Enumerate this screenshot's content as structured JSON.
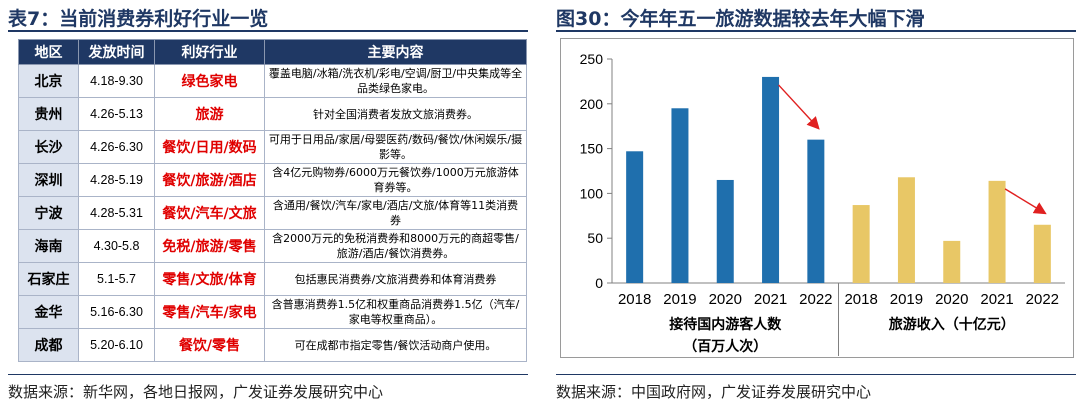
{
  "left_panel": {
    "title": "表7：当前消费券利好行业一览",
    "headers": [
      "地区",
      "发放时间",
      "利好行业",
      "主要内容"
    ],
    "rows": [
      {
        "region": "北京",
        "period": "4.18-9.30",
        "industry": "绿色家电",
        "content": "覆盖电脑/冰箱/洗衣机/彩电/空调/厨卫/中央集成等全品类绿色家电。"
      },
      {
        "region": "贵州",
        "period": "4.26-5.13",
        "industry": "旅游",
        "content": "针对全国消费者发放文旅消费券。"
      },
      {
        "region": "长沙",
        "period": "4.26-6.30",
        "industry": "餐饮/日用/数码",
        "content": "可用于日用品/家居/母婴医药/数码/餐饮/休闲娱乐/摄影等。"
      },
      {
        "region": "深圳",
        "period": "4.28-5.19",
        "industry": "餐饮/旅游/酒店",
        "content": "含4亿元购物券/6000万元餐饮券/1000万元旅游体育券等。"
      },
      {
        "region": "宁波",
        "period": "4.28-5.31",
        "industry": "餐饮/汽车/文旅",
        "content": "含通用/餐饮/汽车/家电/酒店/文旅/体育等11类消费券"
      },
      {
        "region": "海南",
        "period": "4.30-5.8",
        "industry": "免税/旅游/零售",
        "content": "含2000万元的免税消费券和8000万元的商超零售/旅游/酒店/餐饮消费券。"
      },
      {
        "region": "石家庄",
        "period": "5.1-5.7",
        "industry": "零售/文旅/体育",
        "content": "包括惠民消费券/文旅消费券和体育消费券"
      },
      {
        "region": "金华",
        "period": "5.16-6.30",
        "industry": "零售/汽车/家电",
        "content": "含普惠消费券1.5亿和权重商品消费券1.5亿（汽车/家电等权重商品）。"
      },
      {
        "region": "成都",
        "period": "5.20-6.10",
        "industry": "餐饮/零售",
        "content": "可在成都市指定零售/餐饮活动商户使用。"
      }
    ],
    "source": "数据来源：新华网，各地日报网，广发证券发展研究中心"
  },
  "right_panel": {
    "title": "图30：今年年五一旅游数据较去年大幅下滑",
    "source": "数据来源：中国政府网，广发证券发展研究中心"
  },
  "chart_data": {
    "type": "bar",
    "ylim": [
      0,
      250
    ],
    "yticks": [
      0,
      50,
      100,
      150,
      200,
      250
    ],
    "grid": false,
    "groups": [
      {
        "label": [
          "接待国内游客人数",
          "（百万人次）"
        ],
        "color": "#1f6fad",
        "categories": [
          "2018",
          "2019",
          "2020",
          "2021",
          "2022"
        ],
        "values": [
          147,
          195,
          115,
          230,
          160
        ]
      },
      {
        "label": [
          "旅游收入（十亿元）"
        ],
        "color": "#e8c766",
        "categories": [
          "2018",
          "2019",
          "2020",
          "2021",
          "2022"
        ],
        "values": [
          87,
          118,
          47,
          114,
          65
        ]
      }
    ],
    "arrow_color": "#e02020"
  }
}
